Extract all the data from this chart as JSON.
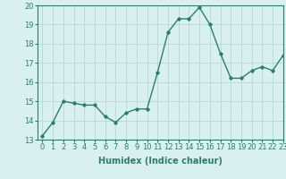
{
  "x": [
    0,
    1,
    2,
    3,
    4,
    5,
    6,
    7,
    8,
    9,
    10,
    11,
    12,
    13,
    14,
    15,
    16,
    17,
    18,
    19,
    20,
    21,
    22,
    23
  ],
  "y": [
    13.2,
    13.9,
    15.0,
    14.9,
    14.8,
    14.8,
    14.2,
    13.9,
    14.4,
    14.6,
    14.6,
    16.5,
    18.6,
    19.3,
    19.3,
    19.9,
    19.0,
    17.5,
    16.2,
    16.2,
    16.6,
    16.8,
    16.6,
    17.4
  ],
  "line_color": "#2d7d6e",
  "bg_color": "#d8f0ee",
  "grid_color": "#b8d8d4",
  "xlabel": "Humidex (Indice chaleur)",
  "ylim": [
    13,
    20
  ],
  "xlim": [
    -0.5,
    23
  ],
  "yticks": [
    13,
    14,
    15,
    16,
    17,
    18,
    19,
    20
  ],
  "xticks": [
    0,
    1,
    2,
    3,
    4,
    5,
    6,
    7,
    8,
    9,
    10,
    11,
    12,
    13,
    14,
    15,
    16,
    17,
    18,
    19,
    20,
    21,
    22,
    23
  ],
  "marker": "D",
  "marker_size": 1.8,
  "line_width": 1.0,
  "xlabel_fontsize": 7,
  "tick_fontsize": 6
}
